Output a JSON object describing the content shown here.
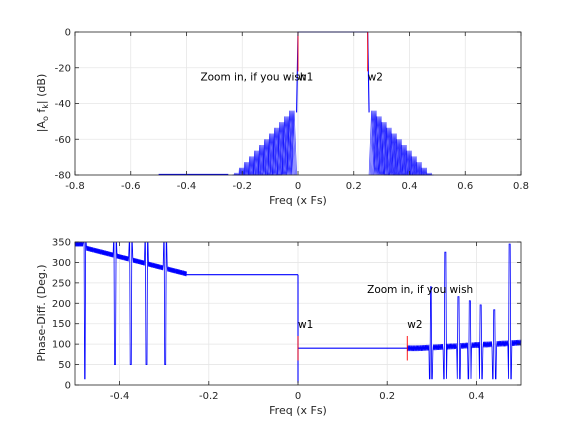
{
  "chart_data": [
    {
      "type": "line",
      "xlabel": "Freq (x Fs)",
      "ylabel_main": "|A",
      "ylabel_sub": "o",
      "ylabel_mid": " f",
      "ylabel_sub2": "k",
      "ylabel_end": "| (dB)",
      "xlim": [
        -0.8,
        0.8
      ],
      "ylim": [
        -80,
        0
      ],
      "xticks": [
        "-0.8",
        "-0.6",
        "-0.4",
        "-0.2",
        "0",
        "0.2",
        "0.4",
        "0.6",
        "0.8"
      ],
      "xtick_values": [
        -0.8,
        -0.6,
        -0.4,
        -0.2,
        0,
        0.2,
        0.4,
        0.6,
        0.8
      ],
      "yticks": [
        "0",
        "-20",
        "-40",
        "-60",
        "-80"
      ],
      "ytick_values": [
        0,
        -20,
        -40,
        -60,
        -80
      ],
      "grid": true,
      "series_color": "#0000ff",
      "marker_color": "#ff0000",
      "annotations": [
        {
          "text": "Zoom in, if you wish",
          "x": -0.35,
          "y": -27
        },
        {
          "text": "w1",
          "x": 0.0,
          "y": -27
        },
        {
          "text": "w2",
          "x": 0.25,
          "y": -27
        }
      ],
      "passband": {
        "start": 0.0,
        "end": 0.25,
        "level": 0
      },
      "stopband_floor": -80,
      "data_extent": [
        -0.5,
        0.5
      ]
    },
    {
      "type": "line",
      "xlabel": "Freq (x Fs)",
      "ylabel": "Phase-Diff. (Deg.)",
      "xlim": [
        -0.5,
        0.5
      ],
      "ylim": [
        0,
        350
      ],
      "xticks": [
        "-0.4",
        "-0.2",
        "0",
        "0.2",
        "0.4"
      ],
      "xtick_values": [
        -0.4,
        -0.2,
        0,
        0.2,
        0.4
      ],
      "yticks": [
        "0",
        "50",
        "100",
        "150",
        "200",
        "250",
        "300",
        "350"
      ],
      "ytick_values": [
        0,
        50,
        100,
        150,
        200,
        250,
        300,
        350
      ],
      "grid": true,
      "series_color": "#0000ff",
      "marker_color": "#ff0000",
      "annotations": [
        {
          "text": "Zoom in, if you wish",
          "x": 0.155,
          "y": 225
        },
        {
          "text": "w1",
          "x": 0.0,
          "y": 140
        },
        {
          "text": "w2",
          "x": 0.245,
          "y": 140
        }
      ],
      "levels": [
        {
          "x_start": -0.25,
          "x_end": 0.0,
          "value": 270
        },
        {
          "x_start": 0.0,
          "x_end": 0.245,
          "value": 90
        }
      ]
    }
  ]
}
